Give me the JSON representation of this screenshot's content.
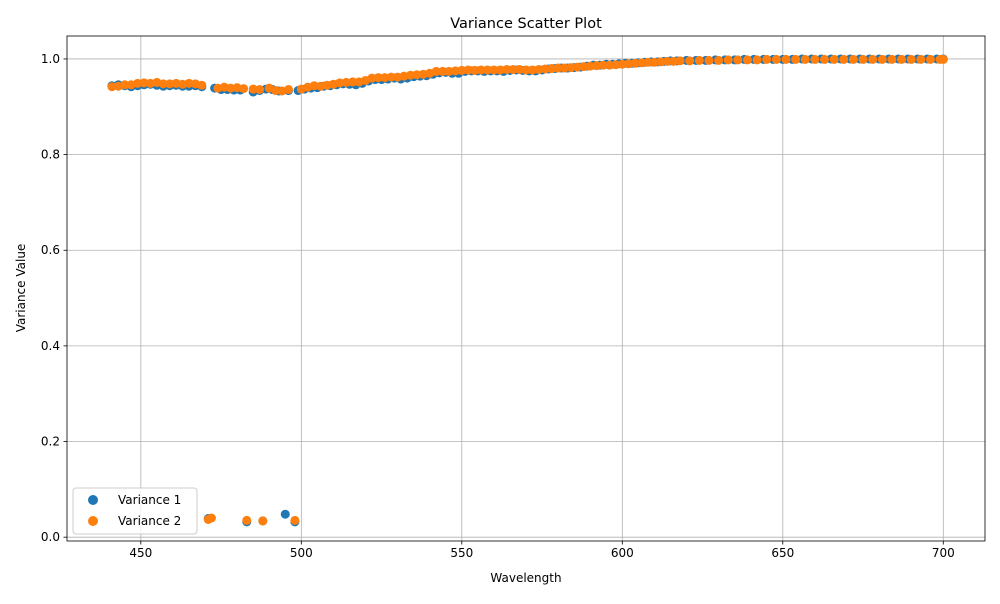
{
  "chart_data": {
    "type": "scatter",
    "title": "Variance Scatter Plot",
    "xlabel": "Wavelength",
    "ylabel": "Variance Value",
    "xlim": [
      427,
      713
    ],
    "ylim": [
      -0.008,
      1.048
    ],
    "xticks": [
      450,
      500,
      550,
      600,
      650,
      700
    ],
    "xtick_labels": [
      "450",
      "500",
      "550",
      "600",
      "650",
      "700"
    ],
    "yticks": [
      0.0,
      0.2,
      0.4,
      0.6,
      0.8,
      1.0
    ],
    "ytick_labels": [
      "0.0",
      "0.2",
      "0.4",
      "0.6",
      "0.8",
      "1.0"
    ],
    "grid": true,
    "legend_position": "lower-left",
    "series": [
      {
        "name": "Variance 1",
        "color": "#1f77b4",
        "points": [
          [
            441,
            0.944
          ],
          [
            443,
            0.946
          ],
          [
            445,
            0.944
          ],
          [
            447,
            0.942
          ],
          [
            449,
            0.944
          ],
          [
            451,
            0.946
          ],
          [
            453,
            0.947
          ],
          [
            455,
            0.945
          ],
          [
            457,
            0.943
          ],
          [
            459,
            0.944
          ],
          [
            461,
            0.945
          ],
          [
            463,
            0.943
          ],
          [
            465,
            0.943
          ],
          [
            467,
            0.944
          ],
          [
            469,
            0.942
          ],
          [
            471,
            0.039
          ],
          [
            473,
            0.939
          ],
          [
            475,
            0.936
          ],
          [
            477,
            0.936
          ],
          [
            479,
            0.935
          ],
          [
            481,
            0.935
          ],
          [
            483,
            0.032
          ],
          [
            485,
            0.931
          ],
          [
            487,
            0.934
          ],
          [
            488,
            0.034
          ],
          [
            489,
            0.937
          ],
          [
            491,
            0.936
          ],
          [
            493,
            0.933
          ],
          [
            495,
            0.048
          ],
          [
            496,
            0.934
          ],
          [
            498,
            0.032
          ],
          [
            499,
            0.934
          ],
          [
            501,
            0.937
          ],
          [
            503,
            0.939
          ],
          [
            505,
            0.94
          ],
          [
            507,
            0.943
          ],
          [
            509,
            0.944
          ],
          [
            511,
            0.946
          ],
          [
            513,
            0.948
          ],
          [
            515,
            0.947
          ],
          [
            517,
            0.946
          ],
          [
            519,
            0.949
          ],
          [
            521,
            0.954
          ],
          [
            523,
            0.957
          ],
          [
            525,
            0.957
          ],
          [
            527,
            0.958
          ],
          [
            529,
            0.96
          ],
          [
            531,
            0.958
          ],
          [
            533,
            0.96
          ],
          [
            535,
            0.963
          ],
          [
            537,
            0.964
          ],
          [
            539,
            0.965
          ],
          [
            541,
            0.968
          ],
          [
            543,
            0.971
          ],
          [
            545,
            0.972
          ],
          [
            547,
            0.97
          ],
          [
            549,
            0.97
          ],
          [
            551,
            0.974
          ],
          [
            553,
            0.975
          ],
          [
            555,
            0.975
          ],
          [
            557,
            0.974
          ],
          [
            559,
            0.975
          ],
          [
            561,
            0.975
          ],
          [
            563,
            0.974
          ],
          [
            565,
            0.976
          ],
          [
            567,
            0.977
          ],
          [
            569,
            0.976
          ],
          [
            571,
            0.975
          ],
          [
            573,
            0.975
          ],
          [
            575,
            0.977
          ],
          [
            577,
            0.979
          ],
          [
            579,
            0.98
          ],
          [
            581,
            0.981
          ],
          [
            583,
            0.981
          ],
          [
            585,
            0.982
          ],
          [
            587,
            0.983
          ],
          [
            589,
            0.985
          ],
          [
            591,
            0.987
          ],
          [
            593,
            0.987
          ],
          [
            595,
            0.989
          ],
          [
            597,
            0.989
          ],
          [
            599,
            0.99
          ],
          [
            601,
            0.991
          ],
          [
            603,
            0.991
          ],
          [
            605,
            0.992
          ],
          [
            607,
            0.993
          ],
          [
            609,
            0.994
          ],
          [
            611,
            0.994
          ],
          [
            613,
            0.995
          ],
          [
            615,
            0.996
          ],
          [
            617,
            0.996
          ],
          [
            620,
            0.997
          ],
          [
            623,
            0.997
          ],
          [
            626,
            0.997
          ],
          [
            629,
            0.998
          ],
          [
            632,
            0.998
          ],
          [
            635,
            0.998
          ],
          [
            638,
            0.999
          ],
          [
            641,
            0.999
          ],
          [
            644,
            0.999
          ],
          [
            647,
            0.999
          ],
          [
            650,
            0.999
          ],
          [
            653,
            0.999
          ],
          [
            656,
            1.0
          ],
          [
            659,
            1.0
          ],
          [
            662,
            1.0
          ],
          [
            665,
            1.0
          ],
          [
            668,
            1.0
          ],
          [
            671,
            1.0
          ],
          [
            674,
            1.0
          ],
          [
            677,
            1.0
          ],
          [
            680,
            1.0
          ],
          [
            683,
            1.0
          ],
          [
            686,
            1.0
          ],
          [
            689,
            1.0
          ],
          [
            692,
            1.0
          ],
          [
            695,
            1.0
          ],
          [
            698,
            1.0
          ],
          [
            700,
            1.0
          ]
        ]
      },
      {
        "name": "Variance 2",
        "color": "#ff7f0e",
        "points": [
          [
            441,
            0.942
          ],
          [
            443,
            0.943
          ],
          [
            445,
            0.946
          ],
          [
            447,
            0.946
          ],
          [
            449,
            0.949
          ],
          [
            451,
            0.95
          ],
          [
            453,
            0.949
          ],
          [
            455,
            0.951
          ],
          [
            457,
            0.948
          ],
          [
            459,
            0.948
          ],
          [
            461,
            0.949
          ],
          [
            463,
            0.947
          ],
          [
            465,
            0.949
          ],
          [
            467,
            0.948
          ],
          [
            469,
            0.945
          ],
          [
            471,
            0.037
          ],
          [
            472,
            0.04
          ],
          [
            474,
            0.939
          ],
          [
            476,
            0.941
          ],
          [
            478,
            0.939
          ],
          [
            480,
            0.94
          ],
          [
            482,
            0.938
          ],
          [
            483,
            0.035
          ],
          [
            485,
            0.937
          ],
          [
            487,
            0.936
          ],
          [
            488,
            0.034
          ],
          [
            490,
            0.939
          ],
          [
            492,
            0.934
          ],
          [
            494,
            0.933
          ],
          [
            496,
            0.936
          ],
          [
            498,
            0.035
          ],
          [
            500,
            0.937
          ],
          [
            502,
            0.941
          ],
          [
            504,
            0.944
          ],
          [
            506,
            0.943
          ],
          [
            508,
            0.945
          ],
          [
            510,
            0.947
          ],
          [
            512,
            0.95
          ],
          [
            514,
            0.951
          ],
          [
            516,
            0.952
          ],
          [
            518,
            0.952
          ],
          [
            520,
            0.955
          ],
          [
            522,
            0.96
          ],
          [
            524,
            0.961
          ],
          [
            526,
            0.961
          ],
          [
            528,
            0.962
          ],
          [
            530,
            0.962
          ],
          [
            532,
            0.964
          ],
          [
            534,
            0.966
          ],
          [
            536,
            0.967
          ],
          [
            538,
            0.968
          ],
          [
            540,
            0.97
          ],
          [
            542,
            0.974
          ],
          [
            544,
            0.974
          ],
          [
            546,
            0.974
          ],
          [
            548,
            0.975
          ],
          [
            550,
            0.976
          ],
          [
            552,
            0.977
          ],
          [
            554,
            0.976
          ],
          [
            556,
            0.977
          ],
          [
            558,
            0.977
          ],
          [
            560,
            0.977
          ],
          [
            562,
            0.977
          ],
          [
            564,
            0.978
          ],
          [
            566,
            0.978
          ],
          [
            568,
            0.978
          ],
          [
            570,
            0.977
          ],
          [
            572,
            0.977
          ],
          [
            574,
            0.978
          ],
          [
            576,
            0.979
          ],
          [
            578,
            0.98
          ],
          [
            580,
            0.981
          ],
          [
            582,
            0.981
          ],
          [
            584,
            0.982
          ],
          [
            586,
            0.983
          ],
          [
            588,
            0.984
          ],
          [
            590,
            0.985
          ],
          [
            592,
            0.986
          ],
          [
            594,
            0.987
          ],
          [
            596,
            0.987
          ],
          [
            598,
            0.988
          ],
          [
            600,
            0.989
          ],
          [
            602,
            0.99
          ],
          [
            604,
            0.991
          ],
          [
            606,
            0.992
          ],
          [
            608,
            0.993
          ],
          [
            610,
            0.993
          ],
          [
            612,
            0.994
          ],
          [
            614,
            0.995
          ],
          [
            616,
            0.995
          ],
          [
            618,
            0.996
          ],
          [
            621,
            0.996
          ],
          [
            624,
            0.997
          ],
          [
            627,
            0.997
          ],
          [
            630,
            0.997
          ],
          [
            633,
            0.998
          ],
          [
            636,
            0.998
          ],
          [
            639,
            0.998
          ],
          [
            642,
            0.998
          ],
          [
            645,
            0.999
          ],
          [
            648,
            0.999
          ],
          [
            651,
            0.999
          ],
          [
            654,
            0.999
          ],
          [
            657,
            0.999
          ],
          [
            660,
            0.999
          ],
          [
            663,
            0.999
          ],
          [
            666,
            0.999
          ],
          [
            669,
            0.999
          ],
          [
            672,
            0.999
          ],
          [
            675,
            0.999
          ],
          [
            678,
            0.999
          ],
          [
            681,
            0.999
          ],
          [
            684,
            0.999
          ],
          [
            687,
            0.999
          ],
          [
            690,
            0.999
          ],
          [
            693,
            0.999
          ],
          [
            696,
            0.999
          ],
          [
            699,
            0.999
          ],
          [
            700,
            0.999
          ]
        ]
      }
    ]
  }
}
